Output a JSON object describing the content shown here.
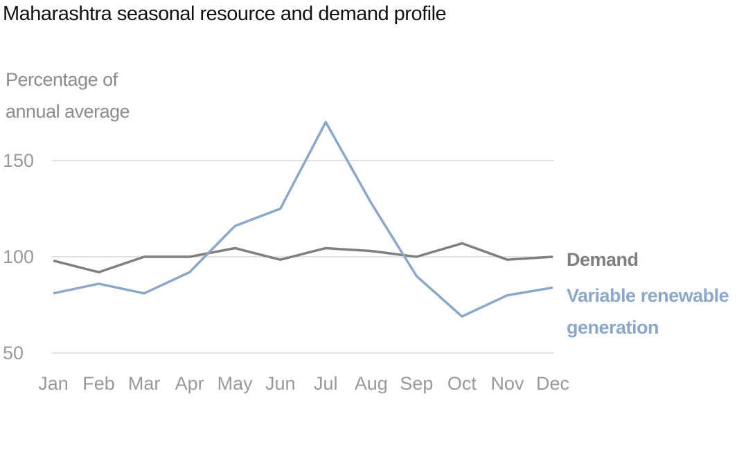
{
  "chart_data": {
    "type": "line",
    "title": "Maharashtra seasonal resource and demand profile",
    "y_label": "Percentage of annual average",
    "categories": [
      "Jan",
      "Feb",
      "Mar",
      "Apr",
      "May",
      "Jun",
      "Jul",
      "Aug",
      "Sep",
      "Oct",
      "Nov",
      "Dec"
    ],
    "series": [
      {
        "name": "Demand",
        "color": "#7f7f7f",
        "values": [
          98,
          92,
          100,
          100,
          104.5,
          98.5,
          104.5,
          103,
          100,
          107,
          98.5,
          100
        ]
      },
      {
        "name": "Variable renewable generation",
        "color": "#8ca8c8",
        "values": [
          81,
          86,
          81,
          92,
          116,
          125,
          170,
          128,
          90,
          69,
          80,
          84
        ]
      }
    ],
    "ylim": [
      50,
      175
    ],
    "yticks": [
      50,
      100,
      150
    ],
    "grid": true
  }
}
